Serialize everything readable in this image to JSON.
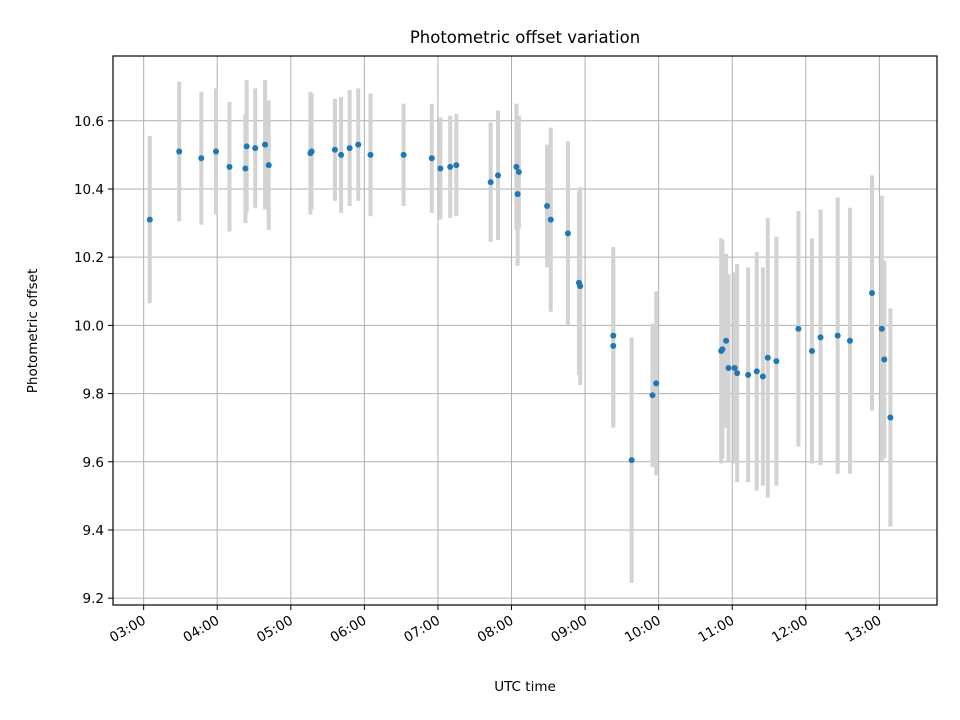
{
  "chart_data": {
    "type": "scatter",
    "title": "Photometric offset variation",
    "xlabel": "UTC time",
    "ylabel": "Photometric offset",
    "grid": true,
    "legend": "none",
    "xlim": [
      "02:35",
      "13:47"
    ],
    "ylim": [
      9.18,
      10.79
    ],
    "xticks": [
      "03:00",
      "04:00",
      "05:00",
      "06:00",
      "07:00",
      "08:00",
      "09:00",
      "10:00",
      "11:00",
      "12:00",
      "13:00"
    ],
    "yticks": [
      "9.2",
      "9.4",
      "9.6",
      "9.8",
      "10.0",
      "10.2",
      "10.4",
      "10.6"
    ],
    "marker_color": "#1f77b4",
    "errorbar_color": "#d3d3d3",
    "series": [
      {
        "x": [
          "03:05",
          "03:29",
          "03:47",
          "03:59",
          "04:10",
          "04:23",
          "04:24",
          "04:31",
          "04:39",
          "04:42",
          "05:16",
          "05:17",
          "05:36",
          "05:41",
          "05:48",
          "05:55",
          "06:05",
          "06:32",
          "06:55",
          "07:02",
          "07:10",
          "07:15",
          "07:43",
          "07:49",
          "08:04",
          "08:06",
          "08:05",
          "08:29",
          "08:32",
          "08:46",
          "08:55",
          "08:56",
          "09:23",
          "09:23",
          "09:38",
          "09:55",
          "09:58",
          "10:51",
          "10:52",
          "10:55",
          "10:57",
          "11:02",
          "11:04",
          "11:13",
          "11:20",
          "11:25",
          "11:29",
          "11:36",
          "11:54",
          "12:05",
          "12:12",
          "12:26",
          "12:36",
          "12:54",
          "13:02",
          "13:04",
          "13:09"
        ],
        "y": [
          10.31,
          10.51,
          10.49,
          10.51,
          10.465,
          10.46,
          10.525,
          10.52,
          10.53,
          10.47,
          10.505,
          10.51,
          10.515,
          10.5,
          10.52,
          10.53,
          10.5,
          10.5,
          10.49,
          10.46,
          10.465,
          10.47,
          10.42,
          10.44,
          10.465,
          10.45,
          10.385,
          10.35,
          10.31,
          10.27,
          10.125,
          10.115,
          9.97,
          9.94,
          9.605,
          9.795,
          9.83,
          9.925,
          9.93,
          9.955,
          9.875,
          9.875,
          9.86,
          9.855,
          9.865,
          9.85,
          9.905,
          9.895,
          9.99,
          9.925,
          9.965,
          9.97,
          9.955,
          10.095,
          9.99,
          9.9,
          9.73
        ],
        "yerr": [
          0.245,
          0.205,
          0.195,
          0.185,
          0.19,
          0.16,
          0.195,
          0.175,
          0.19,
          0.19,
          0.18,
          0.17,
          0.15,
          0.17,
          0.17,
          0.165,
          0.18,
          0.15,
          0.16,
          0.15,
          0.15,
          0.15,
          0.175,
          0.19,
          0.185,
          0.165,
          0.21,
          0.18,
          0.27,
          0.27,
          0.27,
          0.29,
          0.26,
          0.24,
          0.36,
          0.21,
          0.27,
          0.33,
          0.32,
          0.255,
          0.275,
          0.28,
          0.32,
          0.315,
          0.35,
          0.32,
          0.41,
          0.365,
          0.345,
          0.33,
          0.375,
          0.405,
          0.39,
          0.345,
          0.39,
          0.29,
          0.32
        ]
      }
    ]
  }
}
